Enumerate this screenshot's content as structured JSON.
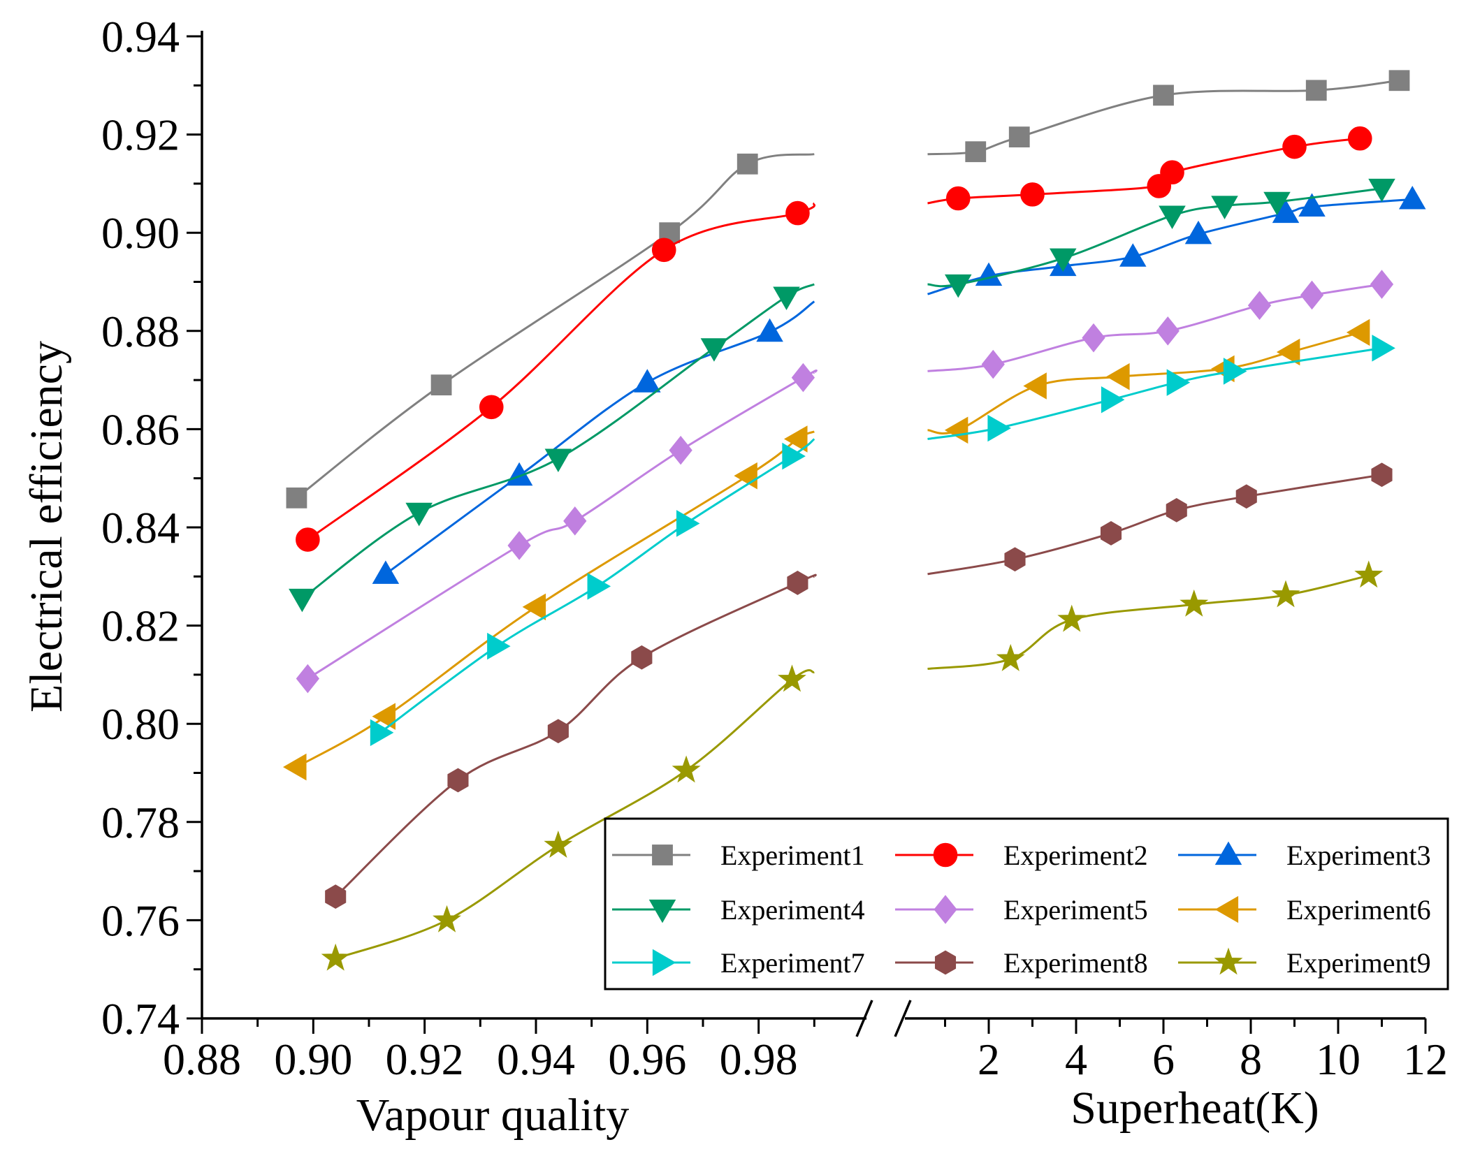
{
  "chart_data": {
    "type": "line",
    "ylabel": "Electrical efficiency",
    "ylim": [
      0.74,
      0.94
    ],
    "yticks": [
      "0.74",
      "0.76",
      "0.78",
      "0.80",
      "0.82",
      "0.84",
      "0.86",
      "0.88",
      "0.90",
      "0.92",
      "0.94"
    ],
    "grid": false,
    "legend_placement": "bottom-right",
    "broken_axis": true,
    "x_segments": [
      {
        "xlabel": "Vapour quality",
        "xlim": [
          0.88,
          1.0
        ],
        "xticks": [
          "0.88",
          "0.90",
          "0.92",
          "0.94",
          "0.96",
          "0.98"
        ]
      },
      {
        "xlabel": "Superheat(K)",
        "xlim": [
          0,
          12
        ],
        "xticks": [
          "2",
          "4",
          "6",
          "8",
          "10",
          "12"
        ]
      }
    ],
    "series": [
      {
        "name": "Experiment1",
        "marker": "square",
        "color": "#808080",
        "quality": [
          [
            0.897,
            0.846
          ],
          [
            0.923,
            0.869
          ],
          [
            0.964,
            0.9
          ],
          [
            0.978,
            0.914
          ],
          [
            0.99,
            0.916
          ]
        ],
        "superheat": [
          [
            0.6,
            0.916
          ],
          [
            1.7,
            0.9165
          ],
          [
            2.7,
            0.9195
          ],
          [
            6.0,
            0.928
          ],
          [
            9.5,
            0.929
          ],
          [
            11.4,
            0.931
          ]
        ]
      },
      {
        "name": "Experiment2",
        "marker": "circle",
        "color": "#ff0000",
        "quality": [
          [
            0.899,
            0.8375
          ],
          [
            0.932,
            0.8645
          ],
          [
            0.963,
            0.8965
          ],
          [
            0.987,
            0.904
          ],
          [
            0.99,
            0.906
          ]
        ],
        "superheat": [
          [
            0.6,
            0.906
          ],
          [
            1.3,
            0.907
          ],
          [
            3.0,
            0.9078
          ],
          [
            5.9,
            0.9095
          ],
          [
            6.2,
            0.9123
          ],
          [
            9.0,
            0.9175
          ],
          [
            10.5,
            0.9192
          ]
        ]
      },
      {
        "name": "Experiment3",
        "marker": "triangle-up",
        "color": "#0066dd",
        "quality": [
          [
            0.913,
            0.8305
          ],
          [
            0.937,
            0.8505
          ],
          [
            0.96,
            0.8695
          ],
          [
            0.982,
            0.8798
          ],
          [
            0.99,
            0.886
          ]
        ],
        "superheat": [
          [
            0.6,
            0.8875
          ],
          [
            2.0,
            0.8912
          ],
          [
            3.7,
            0.8932
          ],
          [
            5.3,
            0.8951
          ],
          [
            6.8,
            0.8997
          ],
          [
            8.8,
            0.904
          ],
          [
            9.4,
            0.9053
          ],
          [
            11.7,
            0.9068
          ]
        ]
      },
      {
        "name": "Experiment4",
        "marker": "triangle-down",
        "color": "#009966",
        "quality": [
          [
            0.898,
            0.8255
          ],
          [
            0.919,
            0.843
          ],
          [
            0.944,
            0.854
          ],
          [
            0.972,
            0.8765
          ],
          [
            0.985,
            0.887
          ],
          [
            0.99,
            0.8895
          ]
        ],
        "superheat": [
          [
            0.6,
            0.8895
          ],
          [
            1.3,
            0.8895
          ],
          [
            3.7,
            0.8948
          ],
          [
            6.2,
            0.9035
          ],
          [
            7.4,
            0.9055
          ],
          [
            8.6,
            0.9063
          ],
          [
            11.0,
            0.909
          ]
        ]
      },
      {
        "name": "Experiment5",
        "marker": "diamond",
        "color": "#c080e0",
        "quality": [
          [
            0.899,
            0.8092
          ],
          [
            0.937,
            0.8363
          ],
          [
            0.947,
            0.8413
          ],
          [
            0.966,
            0.8557
          ],
          [
            0.988,
            0.8705
          ],
          [
            0.99,
            0.8715
          ]
        ],
        "superheat": [
          [
            0.6,
            0.8718
          ],
          [
            2.1,
            0.8732
          ],
          [
            4.4,
            0.8786
          ],
          [
            6.1,
            0.88
          ],
          [
            8.2,
            0.8852
          ],
          [
            9.4,
            0.8873
          ],
          [
            11.0,
            0.8895
          ]
        ]
      },
      {
        "name": "Experiment6",
        "marker": "triangle-left",
        "color": "#dd9900",
        "quality": [
          [
            0.897,
            0.7912
          ],
          [
            0.913,
            0.8015
          ],
          [
            0.94,
            0.8238
          ],
          [
            0.978,
            0.8505
          ],
          [
            0.987,
            0.858
          ],
          [
            0.99,
            0.8595
          ]
        ],
        "superheat": [
          [
            0.6,
            0.8598
          ],
          [
            1.3,
            0.8598
          ],
          [
            3.1,
            0.8688
          ],
          [
            5.0,
            0.8707
          ],
          [
            7.4,
            0.8723
          ],
          [
            8.9,
            0.8757
          ],
          [
            10.5,
            0.8797
          ]
        ]
      },
      {
        "name": "Experiment7",
        "marker": "triangle-right",
        "color": "#00cccc",
        "quality": [
          [
            0.912,
            0.7982
          ],
          [
            0.933,
            0.8158
          ],
          [
            0.951,
            0.828
          ],
          [
            0.967,
            0.8408
          ],
          [
            0.986,
            0.8545
          ],
          [
            0.99,
            0.858
          ]
        ],
        "superheat": [
          [
            0.6,
            0.858
          ],
          [
            2.2,
            0.8602
          ],
          [
            4.8,
            0.866
          ],
          [
            6.3,
            0.8695
          ],
          [
            7.6,
            0.8718
          ],
          [
            11.0,
            0.8765
          ]
        ]
      },
      {
        "name": "Experiment8",
        "marker": "hexagon",
        "color": "#8b4a4a",
        "quality": [
          [
            0.904,
            0.7648
          ],
          [
            0.926,
            0.7885
          ],
          [
            0.944,
            0.7985
          ],
          [
            0.959,
            0.8135
          ],
          [
            0.987,
            0.8287
          ],
          [
            0.99,
            0.83
          ]
        ],
        "superheat": [
          [
            0.6,
            0.8305
          ],
          [
            2.6,
            0.8335
          ],
          [
            4.8,
            0.8388
          ],
          [
            6.3,
            0.8435
          ],
          [
            7.9,
            0.8463
          ],
          [
            11.0,
            0.8507
          ]
        ]
      },
      {
        "name": "Experiment9",
        "marker": "star",
        "color": "#999900",
        "quality": [
          [
            0.904,
            0.7522
          ],
          [
            0.924,
            0.76
          ],
          [
            0.944,
            0.7752
          ],
          [
            0.967,
            0.7905
          ],
          [
            0.986,
            0.809
          ],
          [
            0.99,
            0.8105
          ]
        ],
        "superheat": [
          [
            0.6,
            0.8112
          ],
          [
            2.5,
            0.8132
          ],
          [
            3.9,
            0.8212
          ],
          [
            6.7,
            0.8243
          ],
          [
            8.8,
            0.8262
          ],
          [
            10.7,
            0.8302
          ]
        ]
      }
    ]
  }
}
